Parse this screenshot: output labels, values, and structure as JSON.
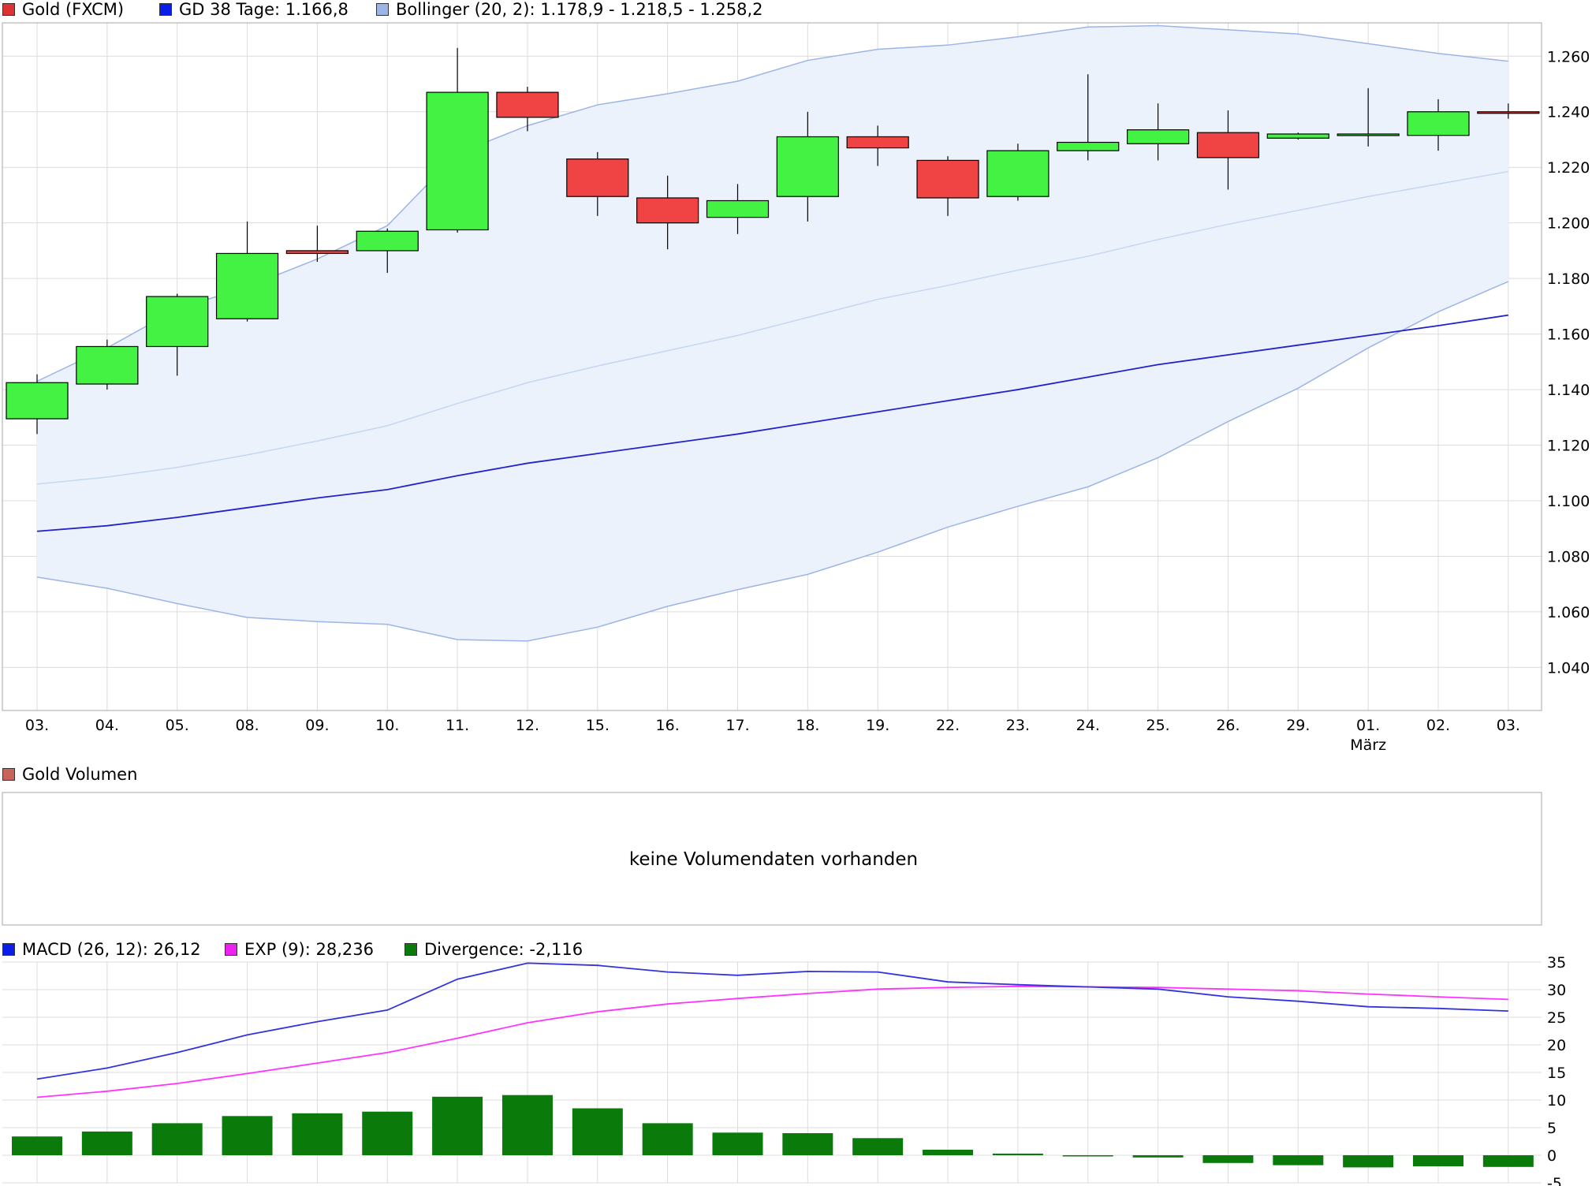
{
  "colors": {
    "up": "#44f244",
    "down": "#f04444",
    "gd": "#2222cc",
    "band_line": "#9db4e6",
    "band_fill": "#ebf2fc",
    "band_mid": "#c6d6f2",
    "macd": "#3333dd",
    "exp": "#ff33ff",
    "divergence": "#0a7a0a",
    "grid": "#dcdcdc",
    "frame": "#b4b4b4"
  },
  "chart_data": [
    {
      "type": "candlestick",
      "title": "",
      "legend": [
        {
          "label": "Gold (FXCM)",
          "color": "#dd3333"
        },
        {
          "label": "GD 38 Tage: 1.166,8",
          "color": "#0a1ee8"
        },
        {
          "label": "Bollinger (20, 2): 1.178,9 - 1.218,5 - 1.258,2",
          "color": "#9db4e6"
        }
      ],
      "categories": [
        "03.",
        "04.",
        "05.",
        "08.",
        "09.",
        "10.",
        "11.",
        "12.",
        "15.",
        "16.",
        "17.",
        "18.",
        "19.",
        "22.",
        "23.",
        "24.",
        "25.",
        "26.",
        "29.",
        "01.",
        "02.",
        "03."
      ],
      "month_label": {
        "index": 19,
        "text": "März"
      },
      "yticks": [
        1040,
        1060,
        1080,
        1100,
        1120,
        1140,
        1160,
        1180,
        1200,
        1220,
        1240,
        1260
      ],
      "ytick_labels": [
        "1.040",
        "1.060",
        "1.080",
        "1.100",
        "1.120",
        "1.140",
        "1.160",
        "1.180",
        "1.200",
        "1.220",
        "1.240",
        "1.260"
      ],
      "ylim": [
        1024.5,
        1272
      ],
      "candles": [
        {
          "o": 1129.5,
          "h": 1145.5,
          "l": 1124,
          "c": 1142.5
        },
        {
          "o": 1142,
          "h": 1158,
          "l": 1140,
          "c": 1155.5
        },
        {
          "o": 1155.5,
          "h": 1174.5,
          "l": 1145,
          "c": 1173.5
        },
        {
          "o": 1165.5,
          "h": 1200.5,
          "l": 1164.5,
          "c": 1189
        },
        {
          "o": 1190,
          "h": 1199,
          "l": 1186,
          "c": 1189
        },
        {
          "o": 1190,
          "h": 1198,
          "l": 1182,
          "c": 1197
        },
        {
          "o": 1197.5,
          "h": 1263,
          "l": 1196.5,
          "c": 1247
        },
        {
          "o": 1247,
          "h": 1249,
          "l": 1233,
          "c": 1238
        },
        {
          "o": 1223,
          "h": 1225.5,
          "l": 1202.5,
          "c": 1209.5
        },
        {
          "o": 1209,
          "h": 1217,
          "l": 1190.5,
          "c": 1200
        },
        {
          "o": 1202,
          "h": 1214,
          "l": 1196,
          "c": 1208
        },
        {
          "o": 1209.5,
          "h": 1240,
          "l": 1200.5,
          "c": 1231
        },
        {
          "o": 1231,
          "h": 1235,
          "l": 1220.5,
          "c": 1227
        },
        {
          "o": 1222.5,
          "h": 1224,
          "l": 1202.5,
          "c": 1209
        },
        {
          "o": 1209.5,
          "h": 1228.5,
          "l": 1208,
          "c": 1226
        },
        {
          "o": 1226,
          "h": 1253.5,
          "l": 1222.5,
          "c": 1229
        },
        {
          "o": 1228.5,
          "h": 1243,
          "l": 1222.5,
          "c": 1233.5
        },
        {
          "o": 1232.5,
          "h": 1240.5,
          "l": 1212,
          "c": 1223.5
        },
        {
          "o": 1230.5,
          "h": 1232.5,
          "l": 1230,
          "c": 1232
        },
        {
          "o": 1232,
          "h": 1248.5,
          "l": 1227.5,
          "c": 1232
        },
        {
          "o": 1231.5,
          "h": 1244.5,
          "l": 1226,
          "c": 1240
        },
        {
          "o": 1240,
          "h": 1243,
          "l": 1237.5,
          "c": 1239.5
        }
      ],
      "gd38": [
        1089,
        1091,
        1094,
        1097.5,
        1101,
        1104,
        1109,
        1113.5,
        1117,
        1120.5,
        1124,
        1128,
        1132,
        1136,
        1140,
        1144.5,
        1149,
        1152.5,
        1156,
        1159.5,
        1163,
        1166.8
      ],
      "bollinger_upper": [
        1143,
        1155,
        1169,
        1177,
        1187,
        1199,
        1225,
        1235,
        1242.5,
        1246.5,
        1251,
        1258.5,
        1262.5,
        1264,
        1267,
        1270.5,
        1271,
        1269.5,
        1268,
        1264.5,
        1261,
        1258.2
      ],
      "bollinger_middle": [
        1106,
        1108.5,
        1112,
        1116.5,
        1121.5,
        1127,
        1135,
        1142.5,
        1148.5,
        1154,
        1159.5,
        1166,
        1172.5,
        1177.5,
        1183,
        1188,
        1194,
        1199.5,
        1204.5,
        1209.5,
        1214,
        1218.5
      ],
      "bollinger_lower": [
        1072.5,
        1068.5,
        1063,
        1058,
        1056.5,
        1055.5,
        1050,
        1049.5,
        1054.5,
        1062,
        1068,
        1073.5,
        1081.5,
        1090.5,
        1098,
        1105,
        1115.5,
        1128.5,
        1140.5,
        1155,
        1168,
        1178.9
      ]
    },
    {
      "type": "bar",
      "title": "Gold Volumen",
      "legend": [
        {
          "label": "Gold Volumen",
          "color": "#c8645a"
        }
      ],
      "message": "keine Volumendaten vorhanden"
    },
    {
      "type": "line",
      "legend": [
        {
          "label": "MACD (26, 12): 26,12",
          "color": "#0a1ee8"
        },
        {
          "label": "EXP (9): 28,236",
          "color": "#ee22ee"
        },
        {
          "label": "Divergence: -2,116",
          "color": "#0a7a0a"
        }
      ],
      "yticks": [
        -5,
        0,
        5,
        10,
        15,
        20,
        25,
        30,
        35
      ],
      "ytick_labels": [
        "-5",
        "0",
        "5",
        "10",
        "15",
        "20",
        "25",
        "30",
        "35"
      ],
      "ylim": [
        -5,
        35
      ],
      "macd": [
        13.8,
        15.8,
        18.6,
        21.8,
        24.2,
        26.3,
        31.9,
        34.8,
        34.4,
        33.2,
        32.6,
        33.3,
        33.2,
        31.4,
        30.9,
        30.5,
        30.1,
        28.7,
        27.9,
        26.9,
        26.6,
        26.12
      ],
      "exp": [
        10.5,
        11.6,
        13.0,
        14.8,
        16.7,
        18.6,
        21.2,
        24.0,
        26.0,
        27.4,
        28.4,
        29.3,
        30.1,
        30.4,
        30.6,
        30.5,
        30.4,
        30.1,
        29.8,
        29.2,
        28.7,
        28.236
      ],
      "divergence": [
        3.4,
        4.3,
        5.8,
        7.1,
        7.6,
        7.9,
        10.6,
        10.9,
        8.5,
        5.8,
        4.1,
        4.0,
        3.1,
        1.0,
        0.3,
        -0.1,
        -0.4,
        -1.4,
        -1.8,
        -2.2,
        -2.0,
        -2.116
      ]
    }
  ]
}
